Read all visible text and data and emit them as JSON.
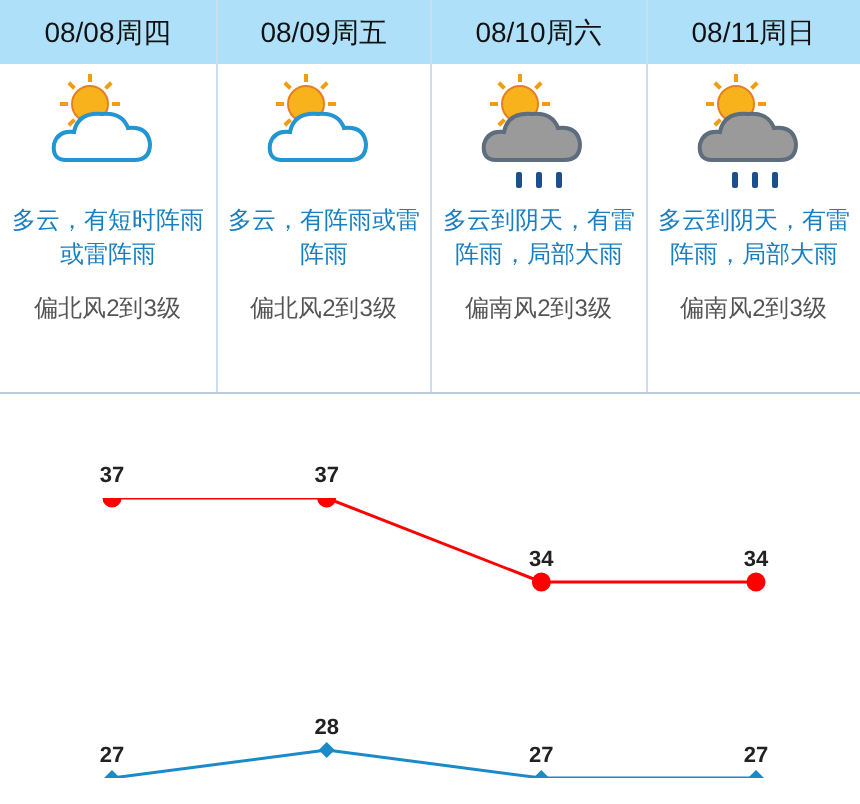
{
  "chart_data": [
    {
      "type": "other",
      "categories": [
        "08/08周四",
        "08/09周五",
        "08/10周六",
        "08/11周日"
      ],
      "annotations": [
        "多云，有短时阵雨或雷阵雨",
        "偏北风2到3级",
        "多云，有阵雨或雷阵雨",
        "偏北风2到3级",
        "多云到阴天，有雷阵雨，局部大雨",
        "偏南风2到3级",
        "多云到阴天，有雷阵雨，局部大雨",
        "偏南风2到3级"
      ]
    },
    {
      "type": "line",
      "categories": [
        null,
        null,
        null,
        null
      ],
      "series": [
        {
          "color": "#ff0000",
          "marker": "circle",
          "values": [
            37,
            37,
            34,
            34
          ]
        },
        {
          "color": "#1a8ac8",
          "marker": "diamond",
          "values": [
            27,
            28,
            27,
            27
          ]
        }
      ],
      "data_labels": true,
      "legend": false
    }
  ]
}
